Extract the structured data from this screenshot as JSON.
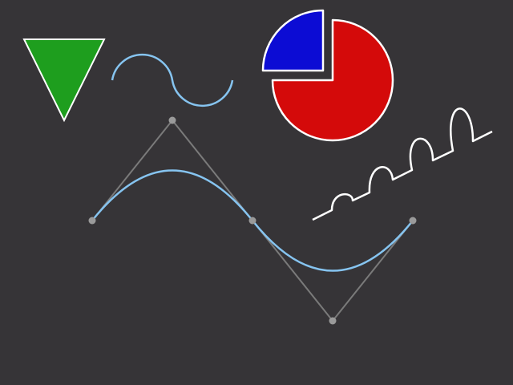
{
  "colors": {
    "background": "#363437",
    "triangle_fill": "#1e9e1e",
    "pie_large_fill": "#d40a0a",
    "pie_small_fill": "#0c0cd4",
    "outline": "#ffffff",
    "wave_stroke": "#86c4f0",
    "bezier_curve": "#86c4f0",
    "control_polygon": "#7a7a7a",
    "control_point": "#9a9a9a",
    "spring_stroke": "#ffffff"
  },
  "shapes": {
    "triangle": "down-pointing-triangle",
    "pie": {
      "large_slice_fraction": 0.75,
      "small_slice_fraction": 0.25,
      "small_slice_exploded": true
    },
    "wave": "s-shaped-arc-wave",
    "bezier": {
      "control_point_count": 5
    },
    "spring": {
      "loop_count": 4
    }
  }
}
